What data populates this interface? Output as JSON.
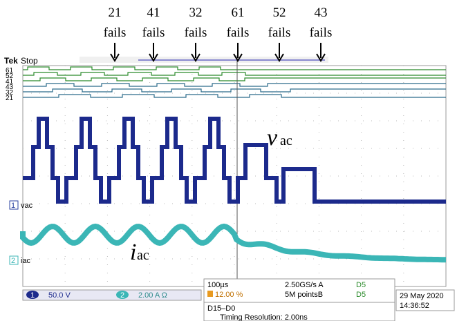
{
  "annotations": [
    {
      "count": "21",
      "label": "fails"
    },
    {
      "count": "41",
      "label": "fails"
    },
    {
      "count": "32",
      "label": "fails"
    },
    {
      "count": "61",
      "label": "fails"
    },
    {
      "count": "52",
      "label": "fails"
    },
    {
      "count": "43",
      "label": "fails"
    }
  ],
  "scope": {
    "brand": "Tek",
    "status": "Stop",
    "digital_channels": [
      "61",
      "52",
      "41",
      "43",
      "32",
      "21"
    ],
    "trace_labels": {
      "ch1": "1",
      "vac": "vac",
      "ch2": "2",
      "iac": "iac"
    },
    "overlay_labels": {
      "vac": {
        "symbol": "v",
        "subscript": "ac"
      },
      "iac": {
        "symbol": "i",
        "subscript": "ac"
      }
    },
    "status_bar": {
      "ch1_badge": "1",
      "ch1_scale": "50.0 V",
      "ch2_badge": "2",
      "ch2_scale": "2.00 A Ω",
      "timebase": "100µs",
      "trigger_pos": "12.00 %",
      "sample_rate": "2.50GS/s A",
      "record": "5M pointsB",
      "d1": "D5",
      "d2": "D5",
      "bus": "D15–D0",
      "timing": "Timing Resolution: 2.00ns",
      "date": "29 May 2020",
      "time": "14:36:52"
    }
  }
}
